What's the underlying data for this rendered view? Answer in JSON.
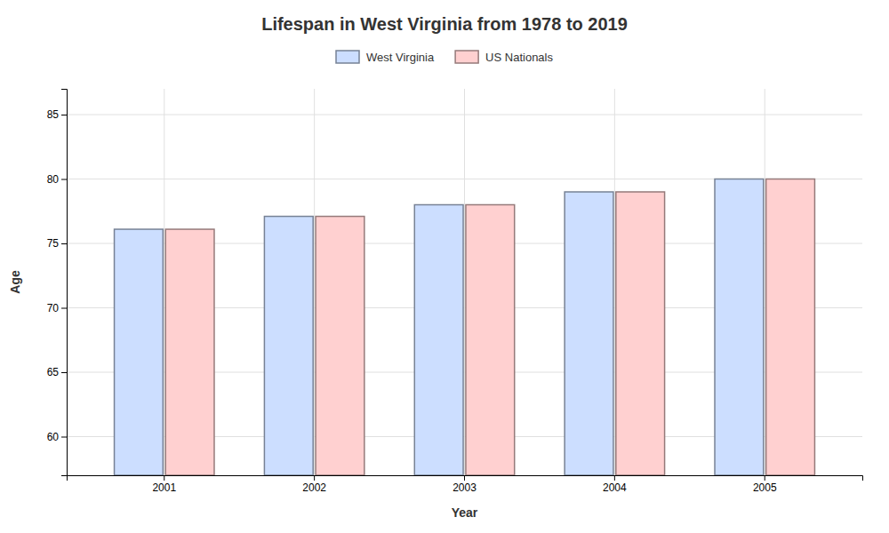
{
  "chart_data": {
    "type": "bar",
    "title": "Lifespan in West Virginia from 1978 to 2019",
    "xlabel": "Year",
    "ylabel": "Age",
    "categories": [
      "2001",
      "2002",
      "2003",
      "2004",
      "2005"
    ],
    "series": [
      {
        "name": "West Virginia",
        "color": "#ccdeff",
        "values": [
          76.1,
          77.1,
          78.0,
          79.0,
          80.0
        ]
      },
      {
        "name": "US Nationals",
        "color": "#ffd0d0",
        "values": [
          76.1,
          77.1,
          78.0,
          79.0,
          80.0
        ]
      }
    ],
    "ylim": [
      57,
      87
    ],
    "yticks": [
      60,
      65,
      70,
      75,
      80,
      85
    ],
    "grid": true,
    "legend": "top"
  }
}
